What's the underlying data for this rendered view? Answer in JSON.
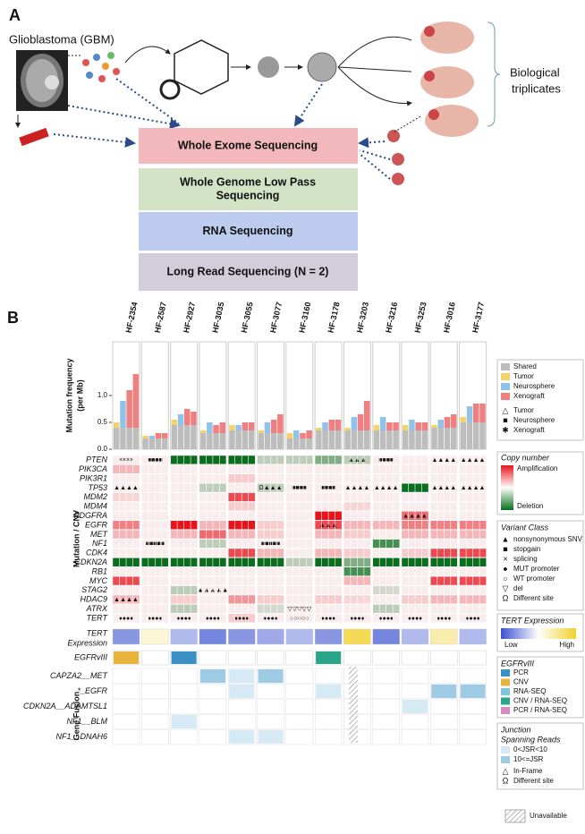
{
  "panel_a": {
    "label": "A",
    "source": "Glioblastoma (GBM)",
    "replicates": [
      "Biological",
      "triplicates"
    ],
    "sequencing": [
      {
        "label": [
          "Whole Exome Sequencing"
        ],
        "color": "#f2b8bb"
      },
      {
        "label": [
          "Whole Genome Low Pass",
          "Sequencing"
        ],
        "color": "#d3e3c6"
      },
      {
        "label": [
          "RNA Sequencing"
        ],
        "color": "#bccbee"
      },
      {
        "label": [
          "Long Read Sequencing (N = 2)"
        ],
        "color": "#d2ccdb"
      }
    ]
  },
  "panel_b": {
    "label": "B",
    "samples": [
      "HF-2354",
      "HF-2587",
      "HF-2927",
      "HF-3035",
      "HF-3055",
      "HF-3077",
      "HF-3160",
      "HF-3178",
      "HF-3203",
      "HF-3216",
      "HF-3253",
      "HF-3016",
      "HF-3177"
    ],
    "mutation_frequency": {
      "ylabel": [
        "Mutation frequency",
        "(per Mb)"
      ],
      "ylim": [
        0,
        2.0
      ],
      "yticks": [
        {
          "value": 0,
          "label": "0.0"
        },
        0.5,
        {
          "value": 1,
          "label": "1.0"
        }
      ],
      "shared": [
        [
          0.4,
          0.4,
          0.4,
          0.4
        ],
        [
          0.2,
          0.2,
          0.2,
          0.2
        ],
        [
          0.45,
          0.45,
          0.45,
          0.45
        ],
        [
          0.3,
          0.3,
          0.3,
          0.3
        ],
        [
          0.35,
          0.35,
          0.35,
          0.35
        ],
        [
          0.3,
          0.3,
          0.3,
          0.3
        ],
        [
          0.2,
          0.2,
          0.2,
          0.2
        ],
        [
          0.35,
          0.35,
          0.35,
          0.35
        ],
        [
          0.35,
          0.35,
          0.35,
          0.35
        ],
        [
          0.35,
          0.35,
          0.35,
          0.35
        ],
        [
          0.35,
          0.35,
          0.35,
          0.35
        ],
        [
          0.4,
          0.4,
          0.4,
          0.4
        ],
        [
          0.5,
          0.5,
          0.5,
          0.5
        ]
      ],
      "private": [
        [
          0.1,
          0.5,
          0.7,
          1.0
        ],
        [
          0.05,
          0.05,
          0.1,
          0.1
        ],
        [
          0.1,
          0.2,
          0.3,
          0.25
        ],
        [
          0.05,
          0.2,
          0.15,
          0.2
        ],
        [
          0.1,
          0.1,
          0.15,
          0.15
        ],
        [
          0.05,
          0.2,
          0.25,
          0.35
        ],
        [
          0.1,
          0.15,
          0.1,
          0.15
        ],
        [
          0.05,
          0.15,
          0.2,
          0.2
        ],
        [
          0.05,
          0.25,
          0.3,
          0.55
        ],
        [
          0.1,
          0.25,
          0.15,
          0.15
        ],
        [
          0.1,
          0.2,
          0.15,
          0.15
        ],
        [
          0.05,
          0.15,
          0.2,
          0.25
        ],
        [
          0.1,
          0.3,
          0.35,
          0.35
        ]
      ]
    },
    "cnv": {
      "ylabel": "Mutation / CNV",
      "genes": [
        {
          "name": "PTEN",
          "cn": [
            0,
            0,
            -2,
            -2,
            -2,
            -0.5,
            -0.5,
            -1,
            -0.5,
            0,
            0,
            0,
            0
          ],
          "mut": [
            "××××",
            "■■■■",
            null,
            null,
            null,
            null,
            null,
            null,
            "▲▲▲",
            "■■■■",
            null,
            "▲▲▲▲",
            "▲▲▲▲"
          ]
        },
        {
          "name": "PIK3CA",
          "cn": [
            0.5,
            0,
            0,
            0,
            0,
            0,
            0,
            0,
            0,
            0,
            0,
            0,
            0
          ]
        },
        {
          "name": "PIK3R1",
          "cn": [
            0,
            0,
            0,
            0,
            0.3,
            0,
            0,
            0,
            0,
            0,
            0,
            0,
            0
          ]
        },
        {
          "name": "TP53",
          "cn": [
            0,
            0,
            0,
            -0.5,
            0,
            -0.5,
            0,
            0,
            0,
            0,
            -2,
            0,
            0
          ],
          "mut": [
            "▲▲▲▲",
            null,
            null,
            null,
            null,
            "Ω▲▲▲",
            "■■■■",
            "■■■■",
            "▲▲▲▲",
            "▲▲▲▲",
            null,
            "▲▲▲▲",
            "▲▲▲▲"
          ]
        },
        {
          "name": "MDM2",
          "cn": [
            0.2,
            0,
            0,
            0,
            1.5,
            0,
            0,
            0,
            0,
            0,
            0,
            0,
            0
          ]
        },
        {
          "name": "MDM4",
          "cn": [
            0,
            0,
            0,
            0,
            0.3,
            0,
            0,
            0,
            0.2,
            0,
            0,
            0,
            0
          ]
        },
        {
          "name": "PDGFRA",
          "cn": [
            0,
            0,
            0,
            0,
            0,
            0,
            0,
            2,
            0,
            0,
            1.2,
            0,
            0
          ],
          "mut": [
            null,
            null,
            null,
            null,
            null,
            null,
            null,
            null,
            null,
            null,
            "▲▲▲▲",
            null,
            null
          ]
        },
        {
          "name": "EGFR",
          "cn": [
            1,
            0,
            2,
            0.5,
            2,
            0.3,
            0,
            1.5,
            0.5,
            0.5,
            1,
            1,
            1
          ],
          "mut": [
            null,
            null,
            null,
            null,
            null,
            null,
            null,
            "▲▲▲",
            null,
            null,
            null,
            null,
            null
          ]
        },
        {
          "name": "MET",
          "cn": [
            0.5,
            0,
            0.5,
            1.2,
            0.5,
            0.3,
            0,
            0.5,
            0.3,
            0,
            0.5,
            0.5,
            0.5
          ]
        },
        {
          "name": "NF1",
          "cn": [
            0,
            0,
            0,
            -0.5,
            0,
            0,
            0,
            0,
            0,
            -1.5,
            0,
            0,
            0
          ],
          "mut": [
            null,
            "■■■■■",
            null,
            null,
            null,
            "■■■■■",
            null,
            null,
            null,
            null,
            null,
            null,
            null
          ]
        },
        {
          "name": "CDK4",
          "cn": [
            0,
            0,
            0,
            0,
            1.5,
            0.5,
            0,
            0.5,
            0.3,
            0,
            0.3,
            1.5,
            1.5
          ]
        },
        {
          "name": "CDKN2A",
          "cn": [
            -2,
            -2,
            -2,
            -2,
            -2,
            -2,
            -0.5,
            -2,
            -1,
            -2,
            -2,
            -2,
            -2
          ]
        },
        {
          "name": "RB1",
          "cn": [
            0,
            0,
            0,
            0,
            0,
            0,
            0,
            0,
            -1.5,
            0,
            0,
            0,
            0
          ]
        },
        {
          "name": "MYC",
          "cn": [
            1.5,
            0,
            0,
            0,
            0,
            0,
            0,
            0,
            0.5,
            0,
            0,
            1.5,
            1.5
          ]
        },
        {
          "name": "STAG2",
          "cn": [
            0,
            0,
            -0.5,
            0,
            0,
            0,
            0,
            0,
            0,
            -0.3,
            0,
            0,
            0
          ],
          "mut": [
            null,
            null,
            null,
            "▲▲▲▲▲",
            null,
            null,
            null,
            null,
            null,
            null,
            null,
            null,
            null
          ]
        },
        {
          "name": "HDAC9",
          "cn": [
            0.5,
            0,
            0.3,
            0,
            0.8,
            0.3,
            0,
            0.3,
            0.2,
            0,
            0.3,
            0.5,
            0.5
          ],
          "mut": [
            "▲▲▲▲",
            null,
            null,
            null,
            null,
            null,
            null,
            null,
            null,
            null,
            null,
            null,
            null
          ]
        },
        {
          "name": "ATRX",
          "cn": [
            0,
            0,
            -0.5,
            0,
            0,
            -0.3,
            0,
            0,
            0,
            -0.5,
            0,
            0,
            0
          ],
          "mut": [
            null,
            null,
            null,
            null,
            null,
            null,
            "▽▽▽▽▽",
            null,
            null,
            null,
            null,
            null,
            null
          ]
        },
        {
          "name": "TERT",
          "cn": [
            0,
            0,
            0,
            0,
            0.3,
            0,
            0,
            0,
            0,
            0,
            0,
            0,
            0
          ],
          "mut": [
            "●●●●",
            "●●●●",
            "●●●●",
            "●●●●",
            "●●●●",
            "●●●●",
            "○○○○○",
            "●●●●",
            "●●●●",
            "●●●●",
            "●●●●",
            "●●●●",
            "●●●●"
          ]
        }
      ]
    },
    "tert_expression": {
      "label": [
        "TERT",
        "Expression"
      ],
      "values": [
        0.2,
        0.6,
        0.3,
        0.15,
        0.2,
        0.25,
        0.3,
        0.2,
        0.9,
        0.15,
        0.3,
        0.7,
        0.3
      ]
    },
    "egfrviii": {
      "label": "EGFRvIII",
      "values": [
        "CNV",
        null,
        "PCR",
        null,
        null,
        null,
        null,
        "CNV / RNA-SEQ",
        null,
        null,
        null,
        null,
        null
      ]
    },
    "fusion": {
      "ylabel": "Gene Fusion",
      "rows": [
        {
          "name": "CAPZA2__MET",
          "values": [
            null,
            null,
            null,
            2,
            1,
            2,
            null,
            null,
            null,
            null,
            null,
            null,
            null
          ]
        },
        {
          "name": "*_EGFR",
          "values": [
            null,
            null,
            null,
            null,
            1,
            null,
            null,
            1,
            null,
            null,
            null,
            2,
            2
          ]
        },
        {
          "name": "CDKN2A__ADAMTSL1",
          "values": [
            null,
            null,
            null,
            null,
            null,
            null,
            null,
            null,
            null,
            null,
            1,
            null,
            null
          ]
        },
        {
          "name": "NF1__BLM",
          "values": [
            null,
            null,
            1,
            null,
            null,
            null,
            null,
            null,
            null,
            null,
            null,
            null,
            null
          ]
        },
        {
          "name": "NF1__DNAH6",
          "values": [
            null,
            null,
            null,
            null,
            1,
            1,
            null,
            null,
            null,
            null,
            null,
            null,
            null
          ]
        }
      ]
    },
    "legends": {
      "mutation_frequency": {
        "items": [
          {
            "name": "Shared",
            "color": "#bdbdbd"
          },
          {
            "name": "Tumor",
            "color": "#f5d36a"
          },
          {
            "name": "Neurosphere",
            "color": "#8fc3ea"
          },
          {
            "name": "Xenograft",
            "color": "#f08080"
          }
        ],
        "symbols": [
          {
            "symbol": "△",
            "name": "Tumor"
          },
          {
            "symbol": "■",
            "name": "Neurosphere"
          },
          {
            "symbol": "✱",
            "name": "Xenograft"
          }
        ]
      },
      "copy_number": {
        "title": "Copy number",
        "high": "Amplification",
        "low": "Deletion"
      },
      "variant_class": {
        "title": "Variant Class",
        "items": [
          {
            "symbol": "▲",
            "name": "nonsynonymous SNV"
          },
          {
            "symbol": "■",
            "name": "stopgain"
          },
          {
            "symbol": "×",
            "name": "splicing"
          },
          {
            "symbol": "●",
            "name": "MUT promoter"
          },
          {
            "symbol": "○",
            "name": "WT promoter"
          },
          {
            "symbol": "▽",
            "name": "del"
          },
          {
            "symbol": "Ω",
            "name": "Different site"
          }
        ]
      },
      "tert": {
        "title": "TERT Expression",
        "low": "Low",
        "high": "High"
      },
      "egfrviii": {
        "title": "EGFRvIII",
        "items": [
          {
            "name": "PCR",
            "color": "#3a8fc4"
          },
          {
            "name": "CNV",
            "color": "#e8b43c"
          },
          {
            "name": "RNA-SEQ",
            "color": "#7cc6e0"
          },
          {
            "name": "CNV / RNA-SEQ",
            "color": "#2aa58a"
          },
          {
            "name": "PCR / RNA-SEQ",
            "color": "#d48cc0"
          }
        ]
      },
      "junction": {
        "title": [
          "Junction",
          "Spanning Reads"
        ],
        "items": [
          {
            "name": "0<JSR<10",
            "color": "#d6eaf5"
          },
          {
            "name": "10<=JSR",
            "color": "#9ccbe3"
          }
        ],
        "symbols": [
          {
            "symbol": "△",
            "name": "In-Frame"
          },
          {
            "symbol": "Ω",
            "name": "Different site"
          }
        ]
      },
      "unavailable": "Unavailable"
    }
  }
}
